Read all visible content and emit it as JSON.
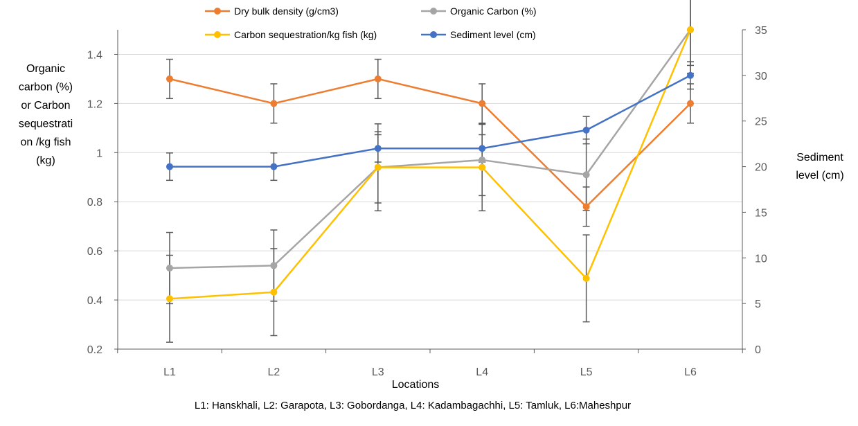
{
  "chart_data": {
    "type": "line",
    "categories": [
      "L1",
      "L2",
      "L3",
      "L4",
      "L5",
      "L6"
    ],
    "xlabel": "Locations",
    "ylabel_lines": [
      "Organic",
      "carbon (%)",
      "or Carbon",
      "sequestrati",
      "on /kg fish",
      "(kg)"
    ],
    "y2label_lines": [
      "Sediment",
      "level (cm)"
    ],
    "footnote": "L1: Hanskhali, L2: Garapota, L3: Gobordanga, L4: Kadambagachhi, L5: Tamluk, L6:Maheshpur",
    "ylim": [
      0.2,
      1.5
    ],
    "yticks": [
      0.2,
      0.4,
      0.6,
      0.8,
      1,
      1.2,
      1.4
    ],
    "ytick_labels": [
      "0.2",
      "0.4",
      "0.6",
      "0.8",
      "1",
      "1.2",
      "1.4"
    ],
    "y2lim": [
      0,
      35
    ],
    "y2ticks": [
      0,
      5,
      10,
      15,
      20,
      25,
      30,
      35
    ],
    "y2tick_labels": [
      "0",
      "5",
      "10",
      "15",
      "20",
      "25",
      "30",
      "35"
    ],
    "grid": true,
    "legend_position": "top",
    "series": [
      {
        "name": "Dry bulk density (g/cm3)",
        "color": "#ED7D31",
        "axis": "left",
        "values": [
          1.3,
          1.2,
          1.3,
          1.2,
          0.78,
          1.2
        ],
        "errors": [
          0.08,
          0.08,
          0.08,
          0.08,
          0.08,
          0.08
        ]
      },
      {
        "name": "Organic Carbon (%)",
        "color": "#A5A5A5",
        "axis": "left",
        "values": [
          0.53,
          0.54,
          0.94,
          0.97,
          0.91,
          1.5
        ],
        "errors": [
          0.145,
          0.145,
          0.145,
          0.145,
          0.145,
          0.145
        ]
      },
      {
        "name": "Carbon sequestration/kg fish (kg)",
        "color": "#FFC000",
        "axis": "left",
        "values": [
          0.405,
          0.432,
          0.94,
          0.94,
          0.488,
          1.5
        ],
        "errors": [
          0.177,
          0.177,
          0.177,
          0.177,
          0.177,
          0.177
        ]
      },
      {
        "name": "Sediment level (cm)",
        "color": "#4472C4",
        "axis": "right",
        "values": [
          20,
          20,
          22,
          22,
          24,
          30
        ],
        "errors": [
          1.5,
          1.5,
          1.5,
          1.5,
          1.5,
          1.5
        ]
      }
    ]
  }
}
